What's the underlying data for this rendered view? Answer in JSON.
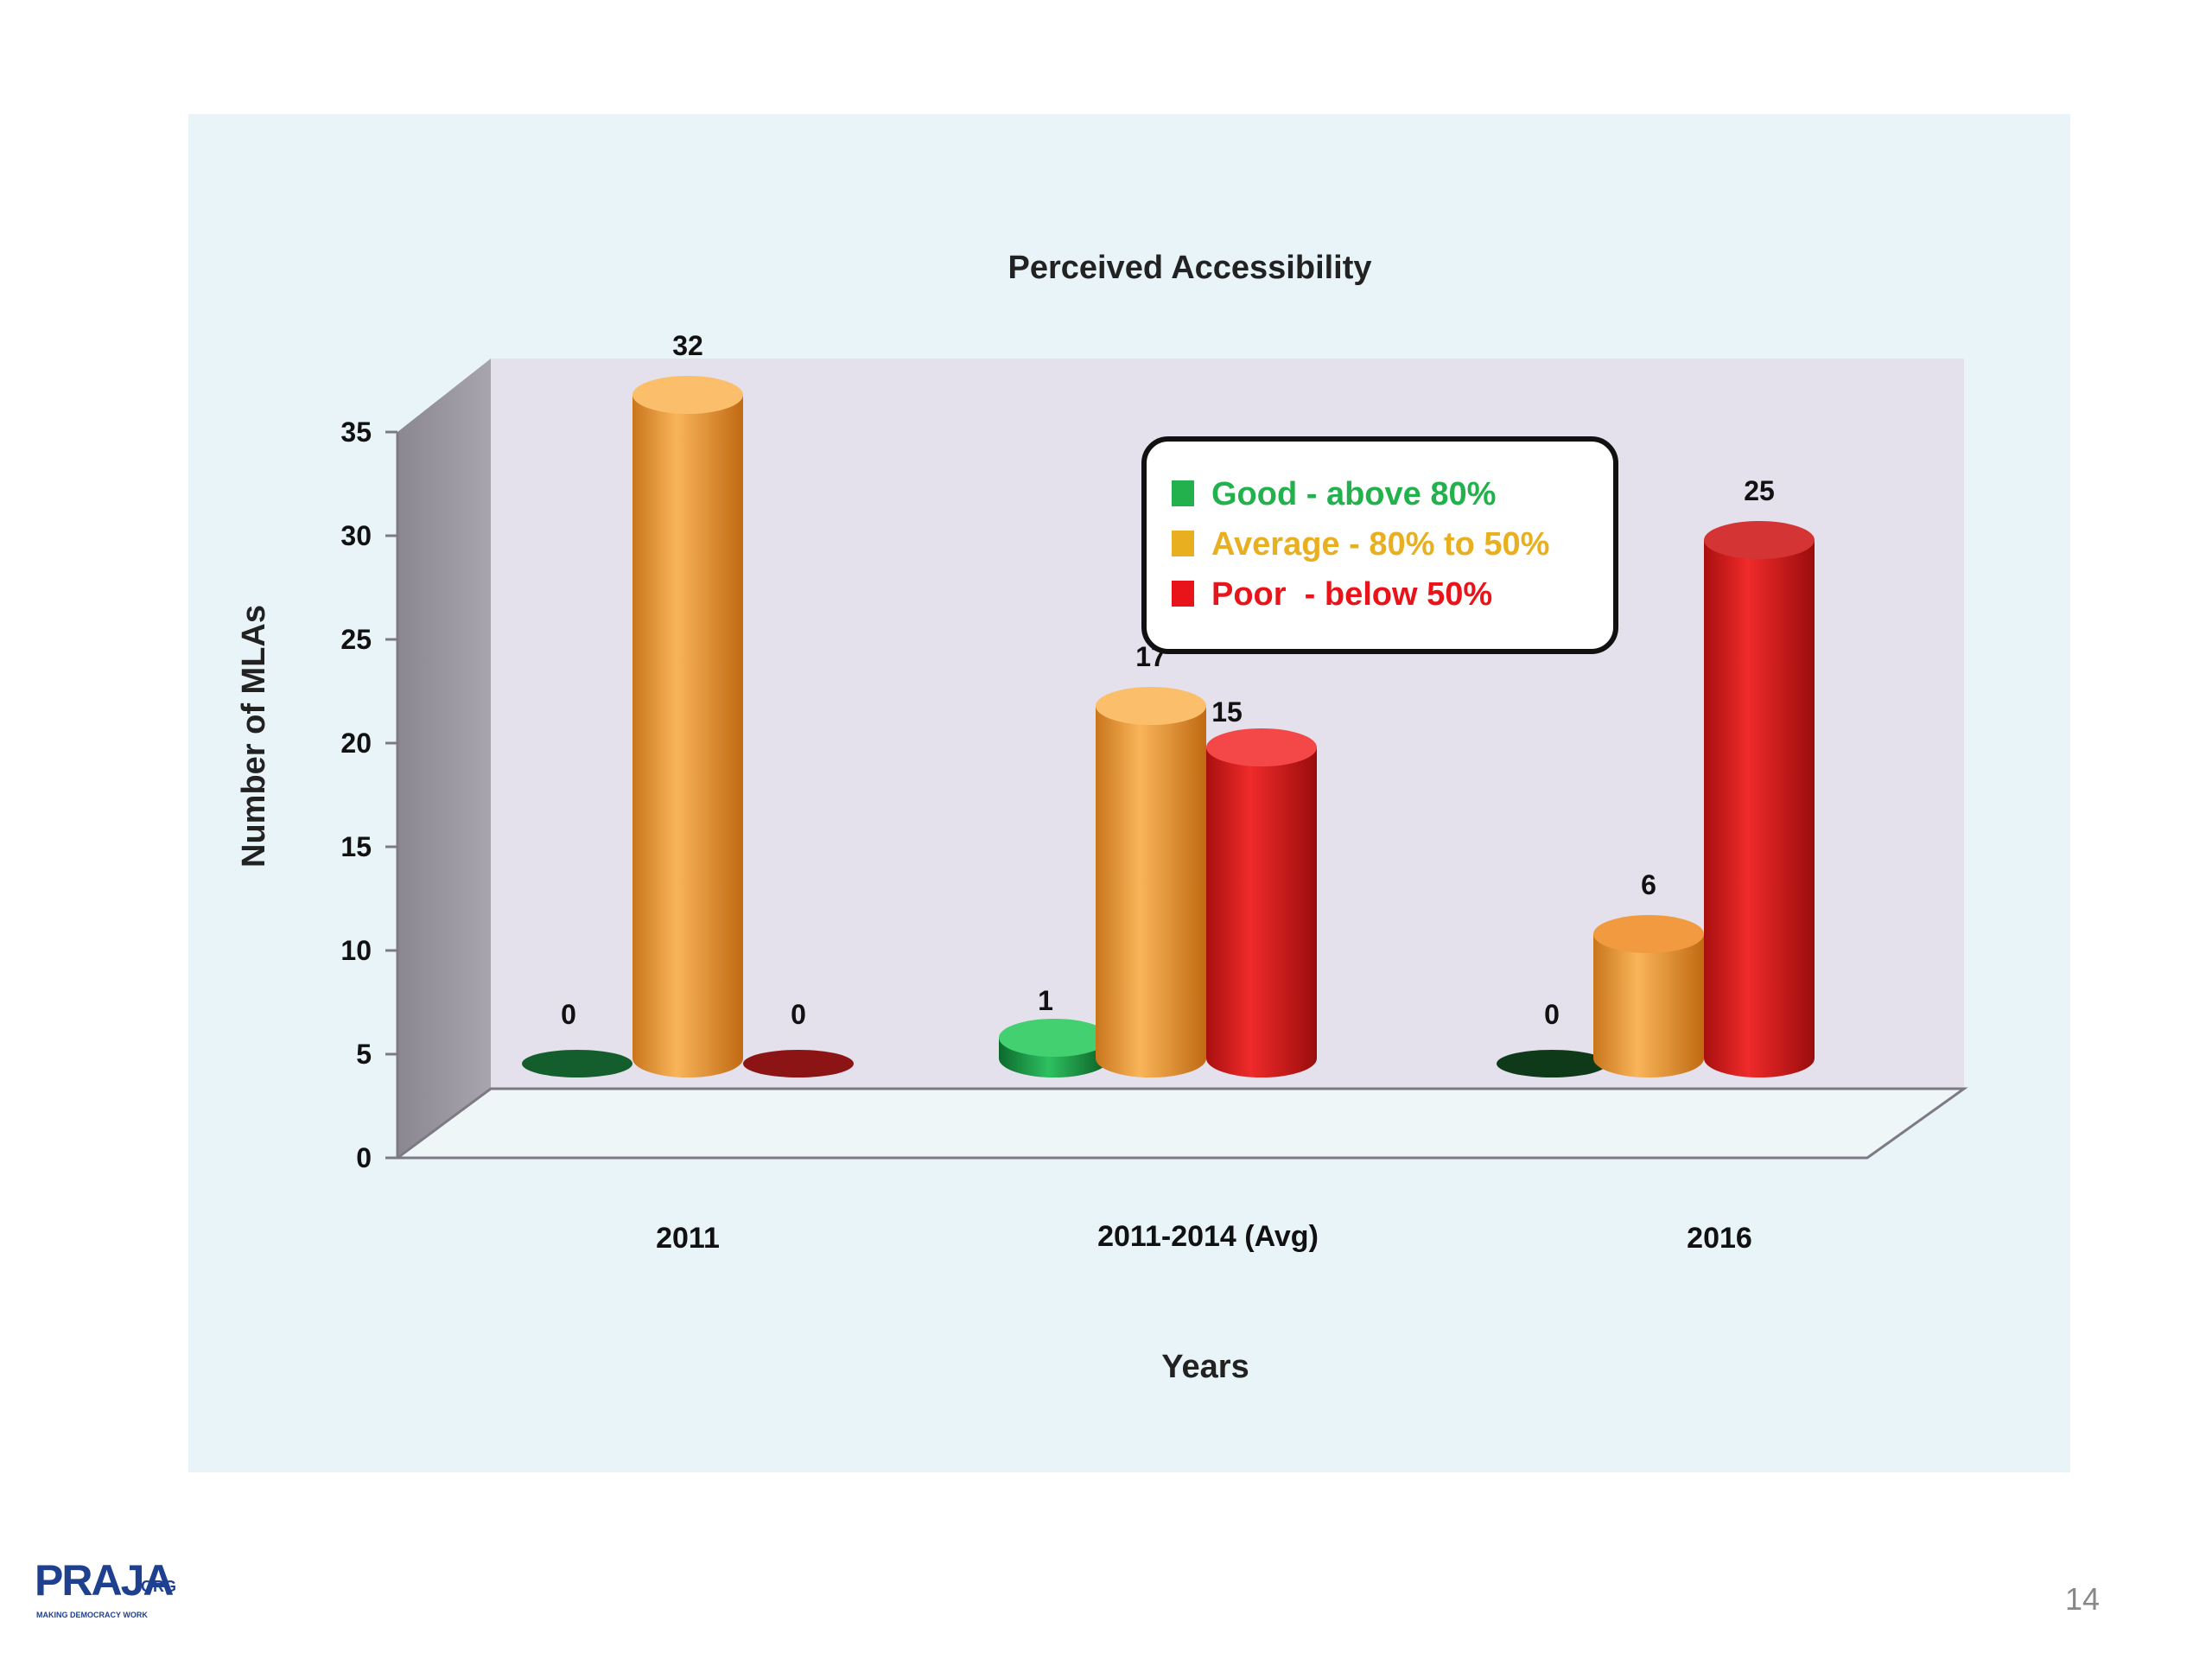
{
  "slide": {
    "page_number": "14",
    "logo": {
      "main": "PRAJA",
      "suffix": ".ORG",
      "tagline": "MAKING DEMOCRACY WORK"
    }
  },
  "chart_data": {
    "type": "bar",
    "style": "3d-cylinder",
    "title": "Perceived Accessibility",
    "xlabel": "Years",
    "ylabel": "Number of MLAs",
    "categories": [
      "2011",
      "2011-2014 (Avg)",
      "2016"
    ],
    "ylim": [
      0,
      35
    ],
    "yticks": [
      0,
      5,
      10,
      15,
      20,
      25,
      30,
      35
    ],
    "legend_position": "top-center-right",
    "series": [
      {
        "name": "Good - above 80%",
        "values": [
          0,
          1,
          0
        ],
        "color": "#1aa64a"
      },
      {
        "name": "Average - 80% to 50%",
        "values": [
          32,
          17,
          6
        ],
        "color": "#f0a030"
      },
      {
        "name": "Poor  - below 50%",
        "values": [
          0,
          15,
          25
        ],
        "color": "#e0201e"
      }
    ],
    "colors": {
      "legend_good": "#22b14c",
      "legend_average": "#e8b020",
      "legend_poor": "#e8141a",
      "panel_background": "#e8f4f8",
      "plot_wall": "#e6e2ee",
      "side_wall": "#9a97a0"
    }
  }
}
